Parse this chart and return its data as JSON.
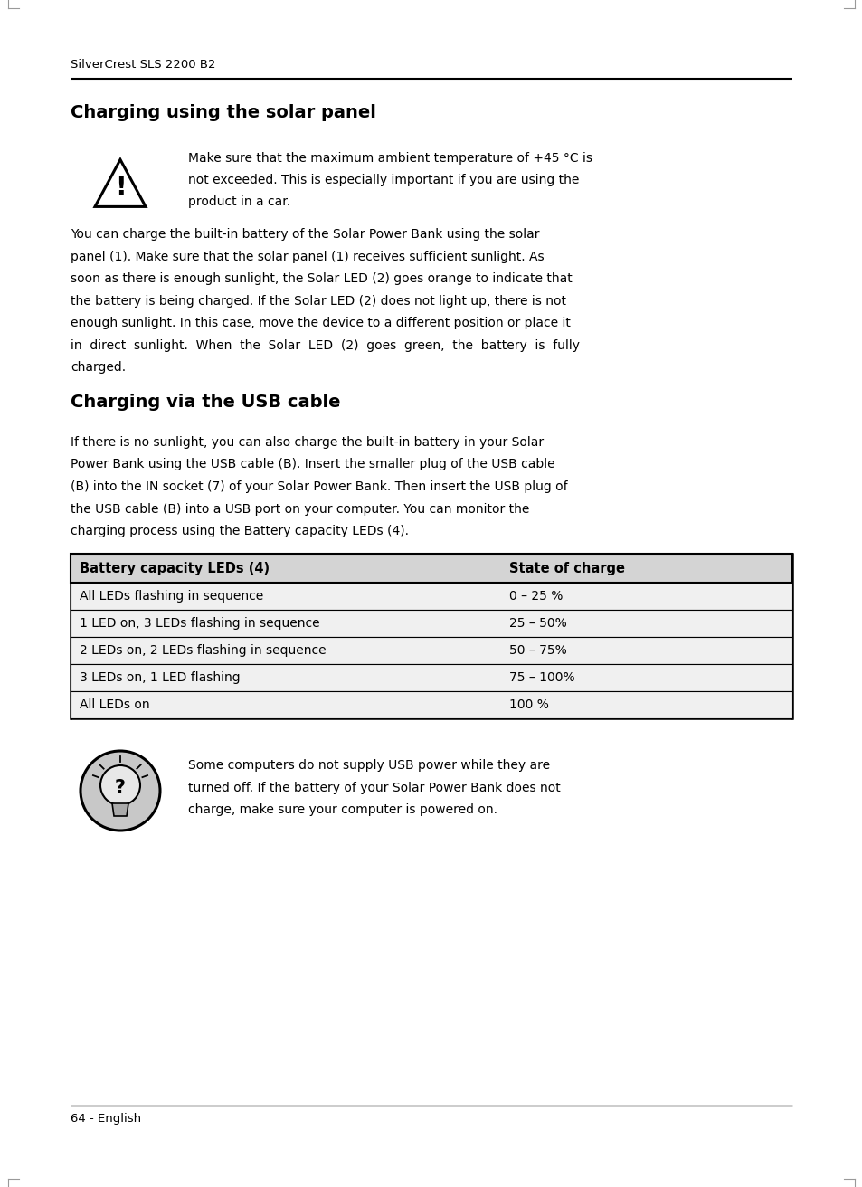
{
  "page_bg": "#ffffff",
  "header_text": "SilverCrest SLS 2200 B2",
  "footer_text": "64 - English",
  "section1_title": "Charging using the solar panel",
  "warning_text_lines": [
    "Make sure that the maximum ambient temperature of +45 °C is",
    "not exceeded. This is especially important if you are using the",
    "product in a car."
  ],
  "body1_lines": [
    "You can charge the built-in battery of the Solar Power Bank using the solar",
    "panel (1). Make sure that the solar panel (1) receives sufficient sunlight. As",
    "soon as there is enough sunlight, the Solar LED (2) goes orange to indicate that",
    "the battery is being charged. If the Solar LED (2) does not light up, there is not",
    "enough sunlight. In this case, move the device to a different position or place it",
    "in  direct  sunlight.  When  the  Solar  LED  (2)  goes  green,  the  battery  is  fully",
    "charged."
  ],
  "section2_title": "Charging via the USB cable",
  "body2_lines": [
    "If there is no sunlight, you can also charge the built-in battery in your Solar",
    "Power Bank using the USB cable (B). Insert the smaller plug of the USB cable",
    "(B) into the IN socket (7) of your Solar Power Bank. Then insert the USB plug of",
    "the USB cable (B) into a USB port on your computer. You can monitor the",
    "charging process using the Battery capacity LEDs (4)."
  ],
  "table_header": [
    "Battery capacity LEDs (4)",
    "State of charge"
  ],
  "table_rows": [
    [
      "All LEDs flashing in sequence",
      "0 – 25 %"
    ],
    [
      "1 LED on, 3 LEDs flashing in sequence",
      "25 – 50%"
    ],
    [
      "2 LEDs on, 2 LEDs flashing in sequence",
      "50 – 75%"
    ],
    [
      "3 LEDs on, 1 LED flashing",
      "75 – 100%"
    ],
    [
      "All LEDs on",
      "100 %"
    ]
  ],
  "tip_text_lines": [
    "Some computers do not supply USB power while they are",
    "turned off. If the battery of your Solar Power Bank does not",
    "charge, make sure your computer is powered on."
  ],
  "text_color": "#000000",
  "table_header_bg": "#d4d4d4",
  "table_row_bg": "#f0f0f0"
}
